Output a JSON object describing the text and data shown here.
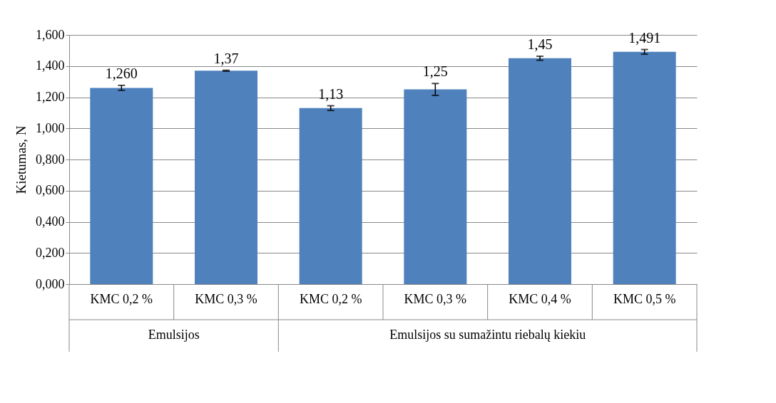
{
  "chart_data": {
    "type": "bar",
    "ylabel": "Kietumas, N",
    "categories": [
      "KMC 0,2 %",
      "KMC 0,3 %",
      "KMC 0,2 %",
      "KMC 0,3 %",
      "KMC 0,4 %",
      "KMC 0,5 %"
    ],
    "values": [
      1.26,
      1.37,
      1.13,
      1.25,
      1.45,
      1.491
    ],
    "errors": [
      0.016,
      0.003,
      0.015,
      0.038,
      0.013,
      0.015
    ],
    "value_labels": [
      "1,260",
      "1,37",
      "1,13",
      "1,25",
      "1,45",
      "1,491"
    ],
    "color": "#4f81bd",
    "ylim": [
      0,
      1.6
    ],
    "yticks": [
      {
        "value": 0,
        "label": "0,000"
      },
      {
        "value": 0.2,
        "label": "0,200"
      },
      {
        "value": 0.4,
        "label": "0,400"
      },
      {
        "value": 0.6,
        "label": "0,600"
      },
      {
        "value": 0.8,
        "label": "0,800"
      },
      {
        "value": 1.0,
        "label": "1,000"
      },
      {
        "value": 1.2,
        "label": "1,200"
      },
      {
        "value": 1.4,
        "label": "1,400"
      },
      {
        "value": 1.6,
        "label": "1,600"
      }
    ],
    "grid": "y",
    "annotations": [
      "Emulsijos",
      "Emulsijos su sumažintu riebalų kiekiu"
    ]
  }
}
